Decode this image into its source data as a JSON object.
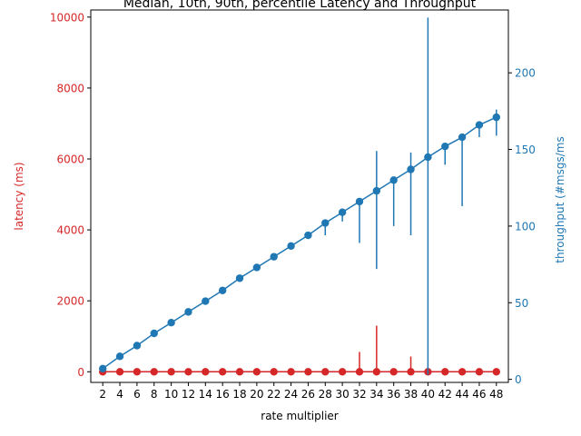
{
  "chart_data": {
    "type": "line",
    "title": "Median, 10th, 90th, percentile Latency and Throughput",
    "xlabel": "rate multiplier",
    "ylabel_left": "latency (ms)",
    "ylabel_right": "throughput (#msgs/ms",
    "x": [
      2,
      4,
      6,
      8,
      10,
      12,
      14,
      16,
      18,
      20,
      22,
      24,
      26,
      28,
      30,
      32,
      34,
      36,
      38,
      40,
      42,
      44,
      46,
      48
    ],
    "xlim": [
      0.6,
      49.4
    ],
    "ylim_left": [
      -300,
      10200
    ],
    "ylim_right": [
      -2,
      241
    ],
    "yticks_left": [
      0,
      2000,
      4000,
      6000,
      8000,
      10000
    ],
    "yticks_right": [
      0,
      50,
      100,
      150,
      200
    ],
    "grid": false,
    "series": [
      {
        "axis": "left",
        "color": "#d62728",
        "median": [
          0,
          0,
          0,
          0,
          0,
          0,
          0,
          0,
          0,
          0,
          0,
          0,
          0,
          0,
          0,
          0,
          0,
          0,
          0,
          0,
          0,
          0,
          0,
          0
        ],
        "p10": [
          0,
          0,
          0,
          0,
          0,
          0,
          0,
          0,
          0,
          0,
          0,
          0,
          0,
          0,
          0,
          0,
          0,
          0,
          0,
          0,
          0,
          0,
          0,
          0
        ],
        "p90": [
          0,
          0,
          0,
          0,
          0,
          0,
          0,
          0,
          0,
          0,
          0,
          0,
          0,
          0,
          0,
          560,
          1300,
          0,
          430,
          0,
          0,
          0,
          0,
          0
        ]
      },
      {
        "axis": "right",
        "color": "#1f77b4",
        "median": [
          7,
          15,
          22,
          30,
          37,
          44,
          51,
          58,
          66,
          73,
          80,
          87,
          94,
          102,
          109,
          116,
          123,
          130,
          137,
          145,
          152,
          158,
          166,
          171
        ],
        "p10": [
          7,
          15,
          22,
          30,
          37,
          44,
          51,
          58,
          66,
          73,
          80,
          87,
          94,
          94,
          103,
          89,
          72,
          100,
          94,
          3,
          140,
          113,
          158,
          159
        ],
        "p90": [
          7,
          15,
          22,
          30,
          37,
          44,
          51,
          58,
          66,
          73,
          80,
          87,
          94,
          102,
          109,
          118,
          149,
          130,
          148,
          236,
          153,
          158,
          168,
          176
        ]
      }
    ]
  }
}
